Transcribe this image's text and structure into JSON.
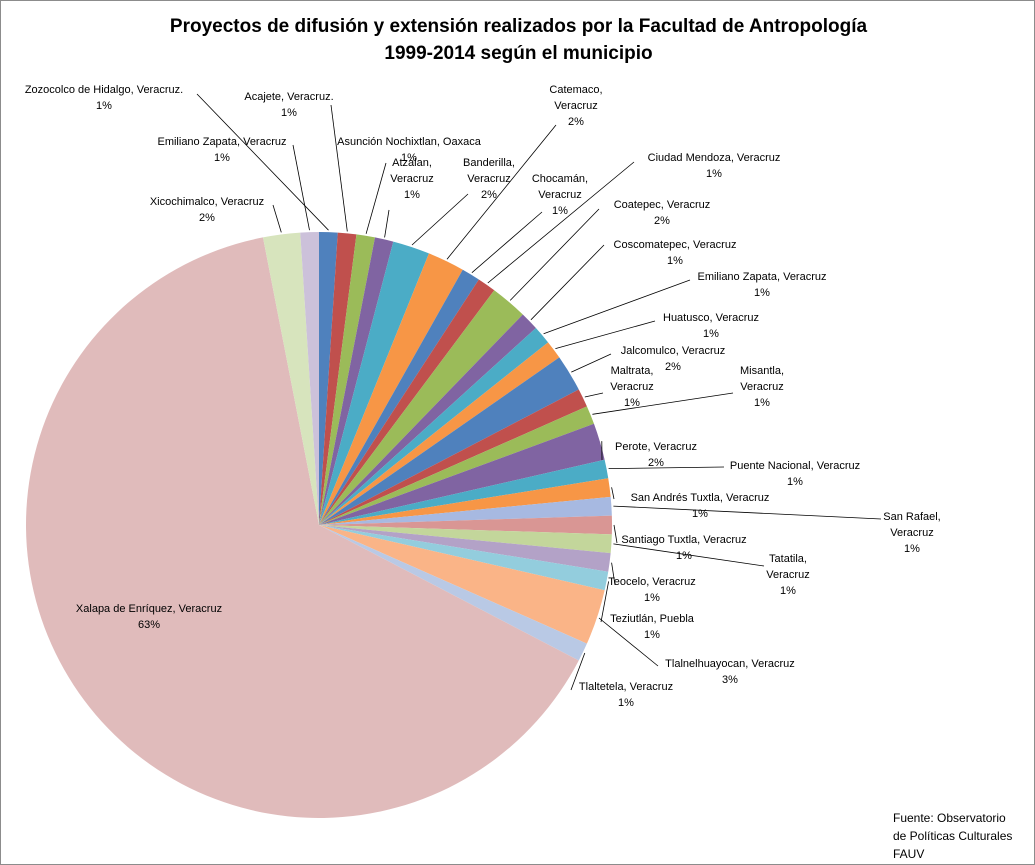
{
  "chart_data": {
    "type": "pie",
    "title": [
      "Proyectos de difusión y extensión realizados por la Facultad de Antropología",
      "1999-2014 según el municipio"
    ],
    "source": [
      "Fuente: Observatorio",
      "de Políticas Culturales",
      "FAUV"
    ],
    "slices": [
      {
        "name": "Zozocolco de Hidalgo, Veracruz.",
        "value": 1,
        "percent": "1%",
        "color": "#4f81bd"
      },
      {
        "name": "Acajete, Veracruz.",
        "value": 1,
        "percent": "1%",
        "color": "#c0504d"
      },
      {
        "name": "Asunción Nochixtlan, Oaxaca",
        "value": 1,
        "percent": "1%",
        "color": "#9bbb59"
      },
      {
        "name": "Atzalan, Veracruz",
        "value": 1,
        "percent": "1%",
        "color": "#8064a2"
      },
      {
        "name": "Banderilla, Veracruz",
        "value": 2,
        "percent": "2%",
        "color": "#4bacc6"
      },
      {
        "name": "Catemaco, Veracruz",
        "value": 2,
        "percent": "2%",
        "color": "#f79646"
      },
      {
        "name": "Chocamán, Veracruz",
        "value": 1,
        "percent": "1%",
        "color": "#4f81bd"
      },
      {
        "name": "Ciudad Mendoza, Veracruz",
        "value": 1,
        "percent": "1%",
        "color": "#c0504d"
      },
      {
        "name": "Coatepec, Veracruz",
        "value": 2,
        "percent": "2%",
        "color": "#9bbb59"
      },
      {
        "name": "Coscomatepec, Veracruz",
        "value": 1,
        "percent": "1%",
        "color": "#8064a2"
      },
      {
        "name": "Emiliano Zapata,  Veracruz",
        "value": 1,
        "percent": "1%",
        "color": "#4bacc6"
      },
      {
        "name": "Huatusco, Veracruz",
        "value": 1,
        "percent": "1%",
        "color": "#f79646"
      },
      {
        "name": "Jalcomulco, Veracruz",
        "value": 2,
        "percent": "2%",
        "color": "#4f81bd"
      },
      {
        "name": "Maltrata, Veracruz",
        "value": 1,
        "percent": "1%",
        "color": "#c0504d"
      },
      {
        "name": "Misantla, Veracruz",
        "value": 1,
        "percent": "1%",
        "color": "#9bbb59"
      },
      {
        "name": "Perote, Veracruz",
        "value": 2,
        "percent": "2%",
        "color": "#8064a2"
      },
      {
        "name": "Puente Nacional, Veracruz",
        "value": 1,
        "percent": "1%",
        "color": "#4bacc6"
      },
      {
        "name": "San Andrés Tuxtla, Veracruz",
        "value": 1,
        "percent": "1%",
        "color": "#f79646"
      },
      {
        "name": "San Rafael, Veracruz",
        "value": 1,
        "percent": "1%",
        "color": "#a7b9e1"
      },
      {
        "name": "Santiago Tuxtla, Veracruz",
        "value": 1,
        "percent": "1%",
        "color": "#d99694"
      },
      {
        "name": "Tatatila, Veracruz",
        "value": 1,
        "percent": "1%",
        "color": "#c3d69b"
      },
      {
        "name": "Teocelo, Veracruz",
        "value": 1,
        "percent": "1%",
        "color": "#b3a2c7"
      },
      {
        "name": "Teziutlán, Puebla",
        "value": 1,
        "percent": "1%",
        "color": "#93cddd"
      },
      {
        "name": "Tlalnelhuayocan, Veracruz",
        "value": 3,
        "percent": "3%",
        "color": "#fab487"
      },
      {
        "name": "Tlaltetela, Veracruz",
        "value": 1,
        "percent": "1%",
        "color": "#b9c9e5"
      },
      {
        "name": "Xalapa de Enríquez, Veracruz",
        "value": 63,
        "percent": "63%",
        "color": "#e0bbbb"
      },
      {
        "name": "Xicochimalco, Veracruz",
        "value": 2,
        "percent": "2%",
        "color": "#d7e4bd"
      },
      {
        "name": "Emiliano  Zapata, Veracruz",
        "value": 1,
        "percent": "1%",
        "color": "#ccc1da"
      }
    ],
    "labels": [
      {
        "lines": [
          "Zozocolco de Hidalgo, Veracruz.",
          "1%"
        ]
      },
      {
        "lines": [
          "Acajete, Veracruz.",
          "1%"
        ]
      },
      {
        "lines": [
          "Asunción Nochixtlan, Oaxaca",
          "1%"
        ]
      },
      {
        "lines": [
          "Atzalan,",
          "Veracruz",
          "1%"
        ]
      },
      {
        "lines": [
          "Banderilla,",
          "Veracruz",
          "2%"
        ]
      },
      {
        "lines": [
          "Catemaco,",
          "Veracruz",
          "2%"
        ]
      },
      {
        "lines": [
          "Chocamán,",
          "Veracruz",
          "1%"
        ]
      },
      {
        "lines": [
          "Ciudad Mendoza, Veracruz",
          "1%"
        ]
      },
      {
        "lines": [
          "Coatepec, Veracruz",
          "2%"
        ]
      },
      {
        "lines": [
          "Coscomatepec, Veracruz",
          "1%"
        ]
      },
      {
        "lines": [
          "Emiliano Zapata,  Veracruz",
          "1%"
        ]
      },
      {
        "lines": [
          "Huatusco, Veracruz",
          "1%"
        ]
      },
      {
        "lines": [
          "Jalcomulco, Veracruz",
          "2%"
        ]
      },
      {
        "lines": [
          "Maltrata,",
          "Veracruz",
          "1%"
        ]
      },
      {
        "lines": [
          "Misantla,",
          "Veracruz",
          "1%"
        ]
      },
      {
        "lines": [
          "Perote, Veracruz",
          "2%"
        ]
      },
      {
        "lines": [
          "Puente Nacional, Veracruz",
          "1%"
        ]
      },
      {
        "lines": [
          "San Andrés Tuxtla, Veracruz",
          "1%"
        ]
      },
      {
        "lines": [
          "San Rafael,",
          "Veracruz",
          "1%"
        ]
      },
      {
        "lines": [
          "Santiago Tuxtla, Veracruz",
          "1%"
        ]
      },
      {
        "lines": [
          "Tatatila,",
          "Veracruz",
          "1%"
        ]
      },
      {
        "lines": [
          "Teocelo, Veracruz",
          "1%"
        ]
      },
      {
        "lines": [
          "Teziutlán, Puebla",
          "1%"
        ]
      },
      {
        "lines": [
          "Tlalnelhuayocan, Veracruz",
          "3%"
        ]
      },
      {
        "lines": [
          "Tlaltetela, Veracruz",
          "1%"
        ]
      },
      {
        "lines": [
          "Xalapa de Enríquez, Veracruz",
          "63%"
        ]
      },
      {
        "lines": [
          "Xicochimalco, Veracruz",
          "2%"
        ]
      },
      {
        "lines": [
          "Emiliano  Zapata, Veracruz",
          "1%"
        ]
      }
    ]
  }
}
